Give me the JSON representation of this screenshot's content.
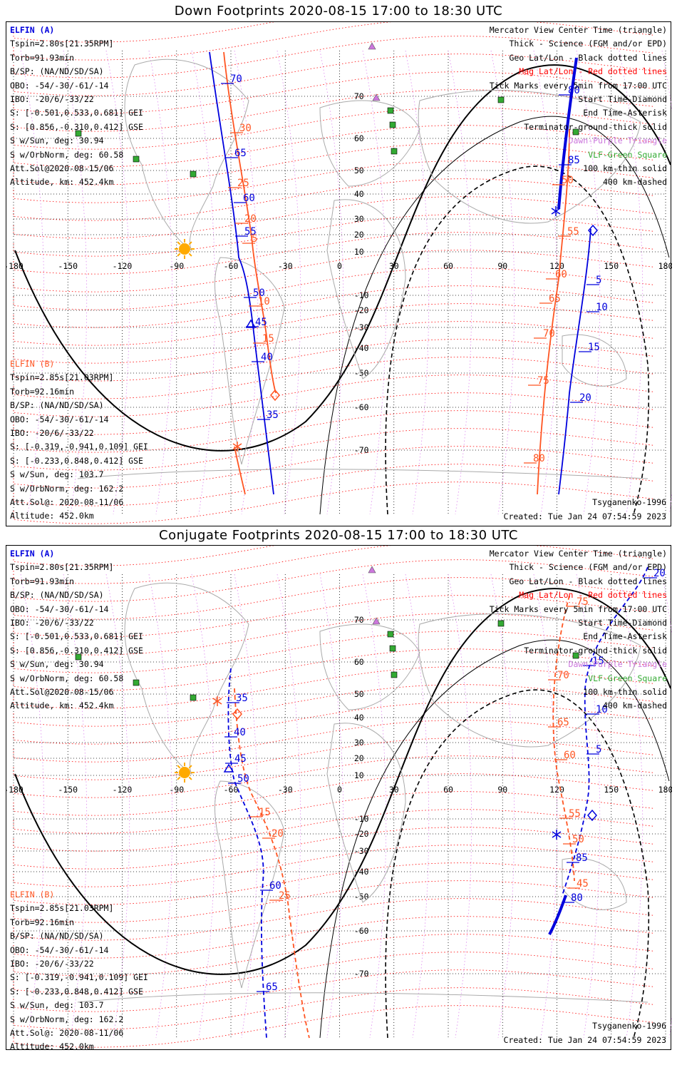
{
  "down": {
    "title": "Down Footprints 2020-08-15 17:00 to 18:30 UTC",
    "model": "Tsyganenko-1996",
    "created": "Created: Tue Jan 24 07:54:59 2023"
  },
  "conj": {
    "title": "Conjugate Footprints 2020-08-15 17:00 to 18:30 UTC",
    "model": "Tsyganenko-1996",
    "created": "Created: Tue Jan 24 07:54:59 2023"
  },
  "elfin_a": {
    "name": "ELFIN (A)",
    "lines": [
      "Tspin=2.80s[21.35RPM]",
      "Torb=91.93min",
      "B/SP: (NA/ND/SD/SA)",
      "OBO: -54/-30/-61/-14",
      "IBO: -20/6/-33/22",
      "S: [-0.501,0.533,0.681] GEI",
      "S: [0.856,-0.310,0.412] GSE",
      "S w/Sun, deg: 30.94",
      "S w/OrbNorm, deg: 60.58",
      "Att.Sol@2020-08-15/06",
      "Altitude, km: 452.4km"
    ]
  },
  "elfin_b": {
    "name": "ELFIN (B)",
    "lines": [
      "Tspin=2.85s[21.03RPM]",
      "Torb=92.16min",
      "B/SP: (NA/ND/SD/SA)",
      "OBO: -54/-30/-61/-14",
      "IBO: -20/6/-33/22",
      "S: [-0.319,-0.941,0.109] GEI",
      "S: [-0.233,0.848,0.412] GSE",
      "S w/Sun, deg: 103.7",
      "S w/OrbNorm, deg: 162.2",
      "Att.Sol@: 2020-08-11/06",
      "Altitude: 452.0km"
    ]
  },
  "legend": [
    {
      "text": "Mercator View Center Time (triangle)",
      "color": "#000000"
    },
    {
      "text": "Thick - Science (FGM and/or EPD)",
      "color": "#000000"
    },
    {
      "text": "Geo Lat/Lon - Black dotted lines",
      "color": "#000000"
    },
    {
      "text": "Mag Lat/Lon - Red dotted lines",
      "color": "#ff0000"
    },
    {
      "text": "Tick Marks every 5min from 17:00 UTC",
      "color": "#000000"
    },
    {
      "text": "Start Time-Diamond",
      "color": "#000000"
    },
    {
      "text": "End Time-Asterisk",
      "color": "#000000"
    },
    {
      "text": "Terminator-ground-thick solid",
      "color": "#000000"
    },
    {
      "text": "Dawn-Purple Triangle",
      "color": "#cc77dd"
    },
    {
      "text": "VLF-Green Square",
      "color": "#33aa33"
    },
    {
      "text": "100 km-thin solid",
      "color": "#000000"
    },
    {
      "text": "400 km-dashed",
      "color": "#000000"
    }
  ],
  "axes": {
    "lon_ticks": [
      "-180",
      "-150",
      "-120",
      "-90",
      "-60",
      "-30",
      "0",
      "30",
      "60",
      "90",
      "120",
      "150",
      "180"
    ],
    "lat_ticks": [
      "70",
      "60",
      "50",
      "40",
      "30",
      "20",
      "10",
      "-10",
      "-20",
      "-30",
      "-40",
      "-50",
      "-60",
      "-70"
    ]
  },
  "colors": {
    "elfin_a": "#0000dd",
    "elfin_b": "#ff5522",
    "mag_grid": "#ff0000",
    "sun": "#ffaa00",
    "vlf": "#33aa33",
    "dawn": "#cc77dd"
  },
  "down_ticks": {
    "a": [
      "70",
      "65",
      "60",
      "55",
      "50",
      "45",
      "40",
      "35",
      "80",
      "85",
      "5",
      "10",
      "15",
      "20"
    ],
    "b": [
      "30",
      "25",
      "20",
      "5",
      "10",
      "15",
      "55",
      "50",
      "60",
      "65",
      "70",
      "75",
      "80"
    ]
  },
  "conj_ticks": {
    "a": [
      "35",
      "40",
      "45",
      "50",
      "60",
      "65",
      "20",
      "15",
      "10",
      "5",
      "85",
      "80"
    ],
    "b": [
      "15",
      "20",
      "25",
      "75",
      "70",
      "65",
      "60",
      "55",
      "50",
      "45"
    ]
  }
}
